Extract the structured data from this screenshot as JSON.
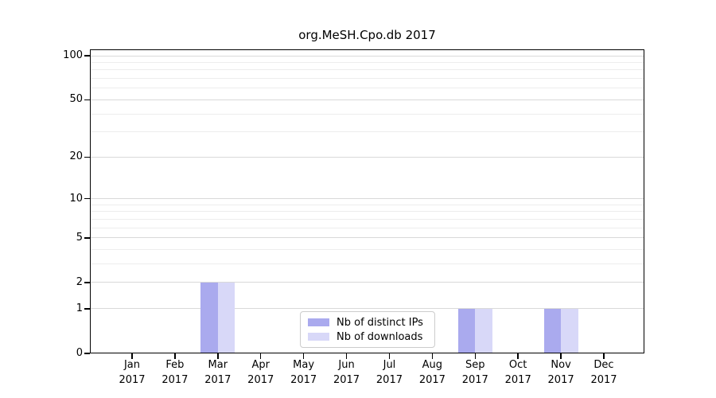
{
  "chart_data": {
    "type": "bar",
    "title": "org.MeSH.Cpo.db 2017",
    "year_label": "2017",
    "categories": [
      "Jan",
      "Feb",
      "Mar",
      "Apr",
      "May",
      "Jun",
      "Jul",
      "Aug",
      "Sep",
      "Oct",
      "Nov",
      "Dec"
    ],
    "series": [
      {
        "name": "Nb of distinct IPs",
        "color": "#aaaaee",
        "values": [
          0,
          0,
          2,
          0,
          0,
          0,
          0,
          0,
          1,
          0,
          1,
          0
        ]
      },
      {
        "name": "Nb of downloads",
        "color": "#d8d8f8",
        "values": [
          0,
          0,
          2,
          0,
          0,
          0,
          0,
          0,
          1,
          0,
          1,
          0
        ]
      }
    ],
    "xlabel": "",
    "ylabel": "",
    "yscale": "log1p",
    "ylim": [
      0,
      110.5
    ],
    "ymajor_ticks": [
      0,
      1,
      2,
      5,
      10,
      20,
      50,
      100
    ],
    "yminor_gridlines": [
      3,
      4,
      6,
      7,
      8,
      9,
      30,
      40,
      60,
      70,
      80,
      90
    ],
    "grid": "horizontal",
    "legend_position": "bottom-center",
    "colors": {
      "major_grid": "#d9d9d9",
      "minor_grid": "#ededed",
      "axis": "#000000",
      "background": "#ffffff"
    }
  }
}
